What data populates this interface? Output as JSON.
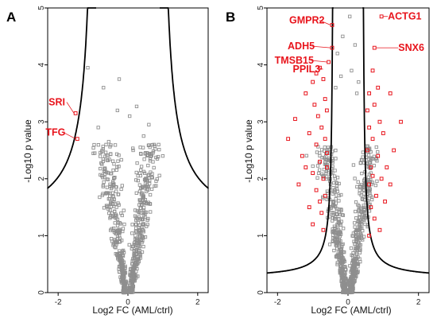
{
  "chart_data": [
    {
      "panel": "A",
      "type": "scatter",
      "xlabel": "Log2 FC (AML/ctrl)",
      "ylabel": "-Log10 p value",
      "xlim": [
        -2.3,
        2.3
      ],
      "ylim": [
        0,
        5
      ],
      "xticks": [
        "-2",
        "0",
        "2"
      ],
      "yticks": [
        "0",
        "1",
        "2",
        "3",
        "4",
        "5"
      ],
      "threshold_curve": {
        "x0": 0.9,
        "c": 1.0,
        "ymin": 1.12
      },
      "colors": {
        "background": "#8f8f8f",
        "significant": "#e8141c",
        "curve": "#000000",
        "label": "#e8141c"
      },
      "points": [
        [
          -1.15,
          3.95
        ],
        [
          -0.7,
          3.6
        ],
        [
          -0.25,
          3.75
        ],
        [
          0.25,
          3.27
        ],
        [
          0.05,
          3.1
        ],
        [
          -0.3,
          3.2
        ],
        [
          0.6,
          2.95
        ],
        [
          -0.85,
          2.9
        ],
        [
          0.45,
          2.75
        ],
        [
          -0.55,
          2.65
        ],
        [
          0.75,
          2.6
        ],
        [
          0.15,
          2.5
        ],
        [
          -0.95,
          2.45
        ],
        [
          1.0,
          2.4
        ]
      ],
      "annotations": [
        {
          "label": "SRI",
          "x": -1.5,
          "y": 3.15
        },
        {
          "label": "TFG",
          "x": -1.45,
          "y": 2.7
        }
      ],
      "highlighted": [
        [
          -1.5,
          3.15
        ],
        [
          -1.45,
          2.7
        ]
      ]
    },
    {
      "panel": "B",
      "type": "scatter",
      "xlabel": "Log2 FC (AML/ctrl)",
      "ylabel": "-Log10 p value",
      "xlim": [
        -2.3,
        2.3
      ],
      "ylim": [
        0,
        5
      ],
      "xticks": [
        "-2",
        "0",
        "2"
      ],
      "yticks": [
        "0",
        "1",
        "2",
        "3",
        "4",
        "5"
      ],
      "threshold_curve": {
        "x0": 0.4,
        "c": 0.18,
        "ymin": 0.25
      },
      "colors": {
        "background": "#8f8f8f",
        "significant": "#e8141c",
        "curve": "#000000",
        "label": "#e8141c"
      },
      "points": [
        [
          0.05,
          4.85
        ],
        [
          -0.15,
          4.5
        ],
        [
          0.2,
          4.35
        ],
        [
          -0.3,
          4.2
        ],
        [
          0.1,
          3.9
        ],
        [
          -0.2,
          3.8
        ],
        [
          0.3,
          3.7
        ],
        [
          -0.35,
          3.6
        ],
        [
          0.25,
          3.5
        ]
      ],
      "annotations": [
        {
          "label": "GMPR2",
          "x": -0.45,
          "y": 4.7
        },
        {
          "label": "ADH5",
          "x": -0.45,
          "y": 4.3
        },
        {
          "label": "TMSB15",
          "x": -0.55,
          "y": 4.05
        },
        {
          "label": "PPIL3",
          "x": -0.8,
          "y": 3.95
        },
        {
          "label": "ACTG1",
          "x": 0.95,
          "y": 4.85
        },
        {
          "label": "SNX6",
          "x": 0.75,
          "y": 4.3
        }
      ],
      "highlighted": [
        [
          -0.45,
          4.7
        ],
        [
          -0.45,
          4.3
        ],
        [
          -0.55,
          4.05
        ],
        [
          -0.8,
          3.95
        ],
        [
          0.95,
          4.85
        ],
        [
          0.75,
          4.3
        ],
        [
          -0.9,
          3.85
        ],
        [
          -1.0,
          3.7
        ],
        [
          -0.7,
          3.75
        ],
        [
          -1.2,
          3.5
        ],
        [
          -0.95,
          3.3
        ],
        [
          -0.65,
          3.4
        ],
        [
          -1.5,
          3.05
        ],
        [
          -0.85,
          3.1
        ],
        [
          -0.6,
          3.2
        ],
        [
          -1.7,
          2.7
        ],
        [
          -1.1,
          2.8
        ],
        [
          -0.75,
          2.9
        ],
        [
          -0.9,
          2.6
        ],
        [
          -0.65,
          2.7
        ],
        [
          -1.3,
          2.4
        ],
        [
          -0.8,
          2.3
        ],
        [
          -0.6,
          2.45
        ],
        [
          -1.0,
          2.1
        ],
        [
          -0.7,
          2.0
        ],
        [
          -1.4,
          1.9
        ],
        [
          -0.9,
          1.8
        ],
        [
          -0.65,
          1.7
        ],
        [
          -1.1,
          1.5
        ],
        [
          -0.75,
          1.4
        ],
        [
          -1.0,
          1.2
        ],
        [
          -0.7,
          1.1
        ],
        [
          -0.8,
          1.6
        ],
        [
          -1.2,
          2.2
        ],
        [
          -0.6,
          2.2
        ],
        [
          0.7,
          3.9
        ],
        [
          0.85,
          3.6
        ],
        [
          0.6,
          3.5
        ],
        [
          1.2,
          3.5
        ],
        [
          0.75,
          3.3
        ],
        [
          0.55,
          3.2
        ],
        [
          1.5,
          3.0
        ],
        [
          0.9,
          3.0
        ],
        [
          0.6,
          2.9
        ],
        [
          1.0,
          2.8
        ],
        [
          0.7,
          2.7
        ],
        [
          1.3,
          2.5
        ],
        [
          0.55,
          2.5
        ],
        [
          0.85,
          2.4
        ],
        [
          1.1,
          2.2
        ],
        [
          0.65,
          2.2
        ],
        [
          0.95,
          2.0
        ],
        [
          0.6,
          1.9
        ],
        [
          0.8,
          1.7
        ],
        [
          1.05,
          1.6
        ],
        [
          0.65,
          1.5
        ],
        [
          0.75,
          1.3
        ],
        [
          0.9,
          1.1
        ],
        [
          0.6,
          1.0
        ],
        [
          0.7,
          2.05
        ],
        [
          1.2,
          1.9
        ]
      ]
    }
  ]
}
